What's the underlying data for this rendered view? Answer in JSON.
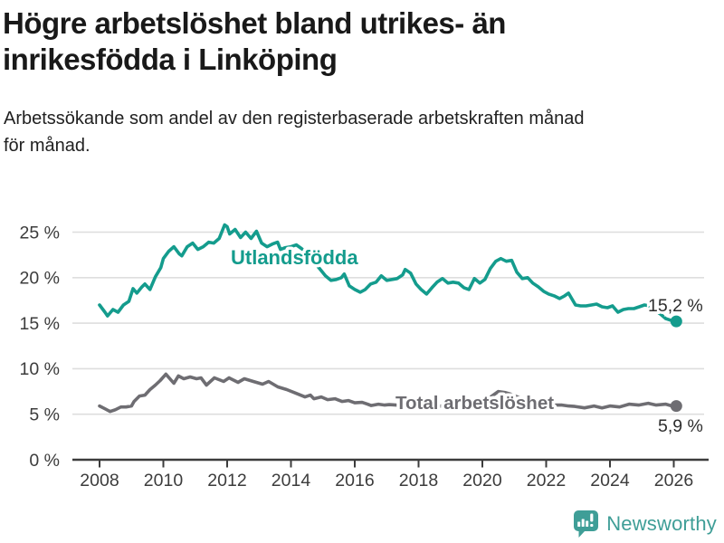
{
  "header": {
    "title": "Högre arbetslöshet bland utrikes- än\ninrikesfödda i Linköping",
    "subtitle": "Arbetssökande som andel av den registerbaserade arbetskraften månad\nför månad."
  },
  "footer": {
    "brand": "Newsworthy",
    "logo_icon": "newsworthy-speech-bubble-bar-chart-icon"
  },
  "colors": {
    "accent_teal": "#149c8d",
    "accent_gray": "#6e6d72",
    "logo_teal": "#3f9e97",
    "grid": "#dedede",
    "axis": "#3c3c3c",
    "title_text": "#191919",
    "value_text": "#2d2d2d"
  },
  "chart_data": {
    "type": "line",
    "title": "Högre arbetslöshet bland utrikes- än inrikesfödda i Linköping",
    "subtitle": "Arbetssökande som andel av den registerbaserade arbetskraften månad för månad.",
    "xlabel": "",
    "ylabel": "",
    "grid": "horizontal",
    "legend_position": "inline-labels",
    "x_axis": {
      "ticks": [
        2008,
        2010,
        2012,
        2014,
        2016,
        2018,
        2020,
        2022,
        2024,
        2026
      ],
      "range": [
        2007.2,
        2027.2
      ]
    },
    "y_axis": {
      "range": [
        0,
        26.5
      ],
      "ticks": [
        {
          "label": "0 %",
          "value": 0
        },
        {
          "label": "5 %",
          "value": 5
        },
        {
          "label": "10 %",
          "value": 10
        },
        {
          "label": "15 %",
          "value": 15
        },
        {
          "label": "20 %",
          "value": 20
        },
        {
          "label": "25 %",
          "value": 25
        }
      ]
    },
    "series": [
      {
        "name": "Utlandsfödda",
        "color": "#149c8d",
        "end_label": "15,2 %",
        "end_value": 15.2,
        "x": [
          2008.0,
          2008.17,
          2008.25,
          2008.42,
          2008.58,
          2008.75,
          2008.92,
          2009.05,
          2009.17,
          2009.33,
          2009.42,
          2009.58,
          2009.75,
          2009.92,
          2010.0,
          2010.17,
          2010.33,
          2010.5,
          2010.58,
          2010.75,
          2010.92,
          2011.08,
          2011.25,
          2011.42,
          2011.58,
          2011.75,
          2011.92,
          2012.0,
          2012.08,
          2012.25,
          2012.42,
          2012.58,
          2012.75,
          2012.92,
          2013.08,
          2013.25,
          2013.42,
          2013.58,
          2013.67,
          2013.83,
          2014.0,
          2014.17,
          2014.33,
          2014.58,
          2014.75,
          2014.92,
          2015.08,
          2015.25,
          2015.42,
          2015.58,
          2015.67,
          2015.83,
          2016.0,
          2016.17,
          2016.33,
          2016.5,
          2016.67,
          2016.83,
          2017.0,
          2017.17,
          2017.33,
          2017.5,
          2017.58,
          2017.75,
          2017.92,
          2018.08,
          2018.25,
          2018.42,
          2018.58,
          2018.75,
          2018.92,
          2019.08,
          2019.25,
          2019.42,
          2019.58,
          2019.75,
          2019.92,
          2020.08,
          2020.25,
          2020.42,
          2020.58,
          2020.75,
          2020.92,
          2021.08,
          2021.25,
          2021.42,
          2021.58,
          2021.75,
          2021.92,
          2022.08,
          2022.25,
          2022.42,
          2022.58,
          2022.7,
          2022.92,
          2023.08,
          2023.25,
          2023.42,
          2023.58,
          2023.75,
          2023.92,
          2024.08,
          2024.25,
          2024.42,
          2024.58,
          2024.75,
          2024.92,
          2025.08,
          2025.25,
          2025.42,
          2025.58,
          2025.75,
          2025.92,
          2026.08
        ],
        "values": [
          17.0,
          16.2,
          15.8,
          16.5,
          16.2,
          17.0,
          17.4,
          18.8,
          18.3,
          19.0,
          19.3,
          18.7,
          20.1,
          21.1,
          22.1,
          22.9,
          23.4,
          22.6,
          22.4,
          23.4,
          23.8,
          23.1,
          23.4,
          23.9,
          23.8,
          24.3,
          25.8,
          25.6,
          24.8,
          25.3,
          24.4,
          25.0,
          24.3,
          25.1,
          23.8,
          23.4,
          23.7,
          23.9,
          23.1,
          23.3,
          23.4,
          23.6,
          23.2,
          22.4,
          21.6,
          20.9,
          20.2,
          19.7,
          19.8,
          20.0,
          20.4,
          19.1,
          18.7,
          18.4,
          18.7,
          19.3,
          19.5,
          20.2,
          19.7,
          19.8,
          19.9,
          20.3,
          20.9,
          20.5,
          19.3,
          18.7,
          18.2,
          18.9,
          19.5,
          19.9,
          19.4,
          19.5,
          19.4,
          18.9,
          18.7,
          19.9,
          19.4,
          19.8,
          21.0,
          21.8,
          22.1,
          21.8,
          21.9,
          20.6,
          19.9,
          20.0,
          19.4,
          19.0,
          18.5,
          18.2,
          18.0,
          17.7,
          18.0,
          18.3,
          17.0,
          16.9,
          16.9,
          17.0,
          17.1,
          16.8,
          16.7,
          16.9,
          16.2,
          16.5,
          16.6,
          16.6,
          16.8,
          17.0,
          16.9,
          16.4,
          16.0,
          15.5,
          15.3,
          15.2
        ]
      },
      {
        "name": "Total arbetslöshet",
        "color": "#6e6d72",
        "end_label": "5,9 %",
        "end_value": 5.9,
        "x": [
          2008.0,
          2008.17,
          2008.33,
          2008.5,
          2008.67,
          2008.83,
          2009.0,
          2009.08,
          2009.25,
          2009.42,
          2009.58,
          2009.75,
          2009.9,
          2010.08,
          2010.33,
          2010.47,
          2010.64,
          2010.84,
          2011.04,
          2011.18,
          2011.35,
          2011.6,
          2011.89,
          2012.06,
          2012.34,
          2012.54,
          2012.82,
          2013.11,
          2013.3,
          2013.59,
          2013.87,
          2014.16,
          2014.44,
          2014.61,
          2014.72,
          2014.95,
          2015.15,
          2015.38,
          2015.6,
          2015.8,
          2016.0,
          2016.23,
          2016.4,
          2016.51,
          2016.74,
          2016.94,
          2017.08,
          2017.3,
          2017.5,
          2017.7,
          2017.9,
          2018.1,
          2018.3,
          2018.5,
          2018.7,
          2018.9,
          2019.1,
          2019.3,
          2019.5,
          2019.7,
          2019.9,
          2020.1,
          2020.3,
          2020.5,
          2020.7,
          2020.9,
          2021.1,
          2021.3,
          2021.5,
          2021.7,
          2021.9,
          2022.1,
          2022.3,
          2022.5,
          2022.7,
          2022.9,
          2023.2,
          2023.5,
          2023.75,
          2024.0,
          2024.3,
          2024.6,
          2024.9,
          2025.2,
          2025.45,
          2025.75,
          2025.95,
          2026.08
        ],
        "values": [
          5.9,
          5.6,
          5.3,
          5.5,
          5.8,
          5.8,
          5.9,
          6.4,
          7.0,
          7.1,
          7.7,
          8.2,
          8.7,
          9.4,
          8.4,
          9.2,
          8.9,
          9.1,
          8.9,
          9.0,
          8.2,
          9.0,
          8.6,
          9.0,
          8.5,
          8.9,
          8.6,
          8.3,
          8.6,
          8.0,
          7.7,
          7.3,
          6.9,
          7.1,
          6.7,
          6.9,
          6.6,
          6.7,
          6.4,
          6.5,
          6.25,
          6.3,
          6.1,
          5.95,
          6.1,
          6.0,
          6.05,
          6.0,
          5.9,
          6.0,
          6.1,
          6.0,
          5.9,
          5.8,
          5.9,
          6.0,
          5.9,
          5.8,
          5.9,
          6.0,
          6.1,
          6.5,
          7.0,
          7.5,
          7.4,
          7.2,
          6.9,
          6.7,
          6.5,
          6.3,
          6.2,
          6.1,
          6.0,
          6.0,
          5.9,
          5.85,
          5.7,
          5.9,
          5.7,
          5.9,
          5.8,
          6.1,
          6.0,
          6.2,
          6.0,
          6.1,
          5.9,
          5.9
        ]
      }
    ]
  }
}
